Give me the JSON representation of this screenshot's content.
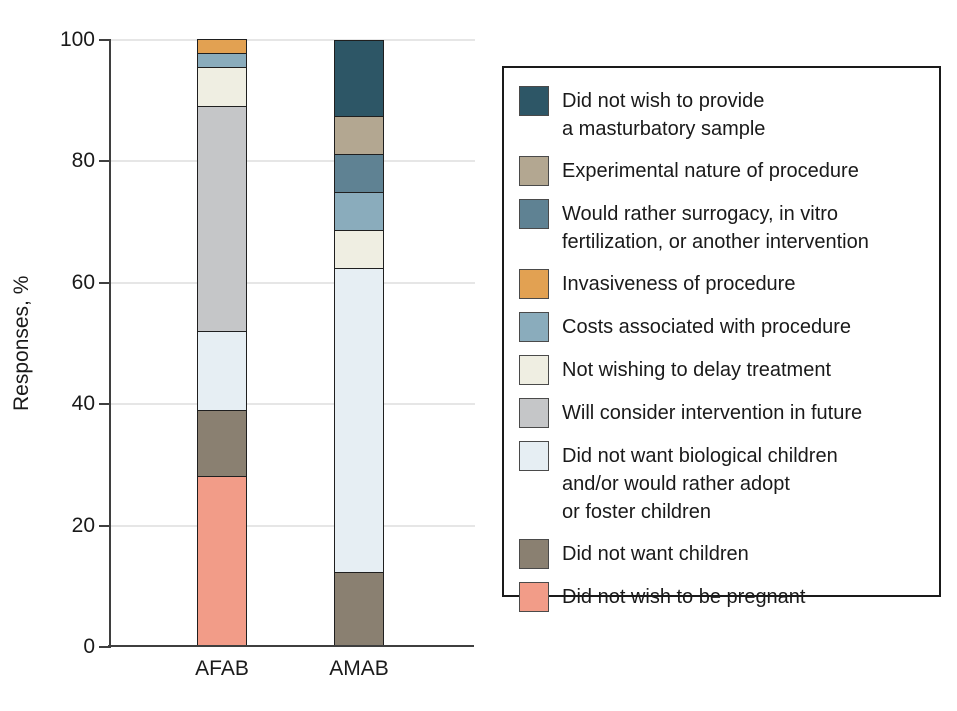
{
  "chart_data": {
    "type": "bar",
    "stacked": true,
    "title": "",
    "ylabel": "Responses, %",
    "xlabel": "",
    "ylim": [
      0,
      100
    ],
    "yticks": [
      0,
      20,
      40,
      60,
      80,
      100
    ],
    "grid": "horizontal",
    "legend_position": "right",
    "categories": [
      "AFAB",
      "AMAB"
    ],
    "series": [
      {
        "name": "Did not wish to provide a masturbatory sample",
        "legend_label": "Did not wish to provide\na masturbatory sample",
        "color": "#2d5666",
        "values": [
          0,
          12.5
        ]
      },
      {
        "name": "Experimental nature of procedure",
        "legend_label": "Experimental nature of procedure",
        "color": "#b3a791",
        "values": [
          0,
          6.25
        ]
      },
      {
        "name": "Would rather surrogacy, in vitro fertilization, or another intervention",
        "legend_label": "Would rather surrogacy, in vitro\nfertilization, or another intervention",
        "color": "#5f8293",
        "values": [
          0,
          6.25
        ]
      },
      {
        "name": "Invasiveness of procedure",
        "legend_label": "Invasiveness of procedure",
        "color": "#e2a152",
        "values": [
          2.2,
          0
        ]
      },
      {
        "name": "Costs associated with procedure",
        "legend_label": "Costs associated with procedure",
        "color": "#8aacbc",
        "values": [
          2.2,
          6.25
        ]
      },
      {
        "name": "Not wishing to delay treatment",
        "legend_label": "Not wishing to delay treatment",
        "color": "#efeee2",
        "values": [
          6.5,
          6.25
        ]
      },
      {
        "name": "Will consider intervention in future",
        "legend_label": "Will consider intervention in future",
        "color": "#c5c6c8",
        "values": [
          37,
          0
        ]
      },
      {
        "name": "Did not want biological children and/or would rather adopt or foster children",
        "legend_label": "Did not want biological children\nand/or would rather adopt\nor foster children",
        "color": "#e6eef3",
        "values": [
          13,
          50
        ]
      },
      {
        "name": "Did not want children",
        "legend_label": "Did not want children",
        "color": "#8a8071",
        "values": [
          10.9,
          12.5
        ]
      },
      {
        "name": "Did not wish to be pregnant",
        "legend_label": "Did not wish to be pregnant",
        "color": "#f29c88",
        "values": [
          28.3,
          0
        ]
      }
    ]
  }
}
